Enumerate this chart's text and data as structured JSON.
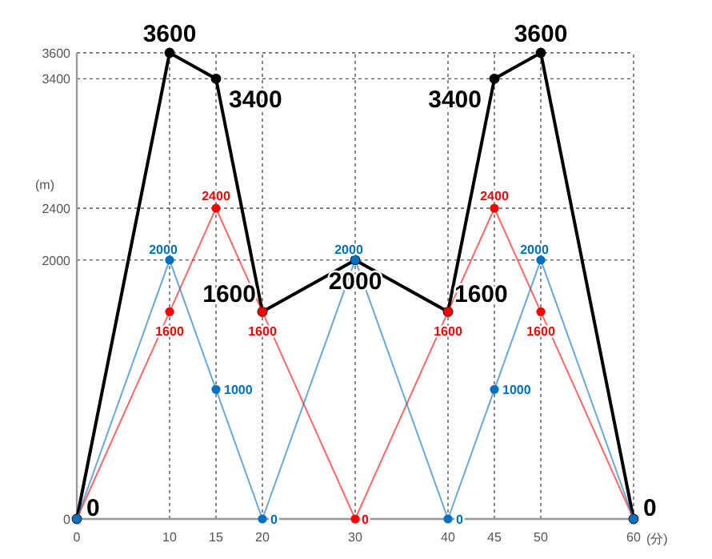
{
  "chart_data": {
    "type": "line",
    "xlabel": "(分)",
    "ylabel": "(m)",
    "xlim": [
      0,
      60
    ],
    "ylim": [
      0,
      3600
    ],
    "xticks": [
      0,
      10,
      15,
      20,
      30,
      40,
      45,
      50,
      60
    ],
    "yticks": [
      0,
      2000,
      2400,
      3400,
      3600
    ],
    "grid": true,
    "marker": "circle",
    "line_style": "solid",
    "series": [
      {
        "color": "#000000",
        "x": [
          0,
          10,
          15,
          20,
          30,
          40,
          45,
          50,
          60
        ],
        "values": [
          0,
          3600,
          3400,
          1600,
          2000,
          1600,
          3400,
          3600,
          0
        ],
        "value_labels": [
          "0",
          "3600",
          "3400",
          "1600",
          "2000",
          "1600",
          "3400",
          "3600",
          "0"
        ]
      },
      {
        "color": "#ff0000",
        "x": [
          0,
          10,
          15,
          20,
          30,
          40,
          45,
          50,
          60
        ],
        "values": [
          0,
          1600,
          2400,
          1600,
          0,
          1600,
          2400,
          1600,
          0
        ],
        "value_labels": [
          null,
          "1600",
          "2400",
          "1600",
          "0",
          "1600",
          "2400",
          "1600",
          null
        ]
      },
      {
        "color": "#0070c0",
        "x": [
          0,
          10,
          15,
          20,
          30,
          40,
          45,
          50,
          60
        ],
        "values": [
          0,
          2000,
          1000,
          0,
          2000,
          0,
          1000,
          2000,
          0
        ],
        "value_labels": [
          null,
          "2000",
          "1000",
          "0",
          "2000",
          "0",
          "1000",
          "2000",
          null
        ]
      }
    ]
  }
}
